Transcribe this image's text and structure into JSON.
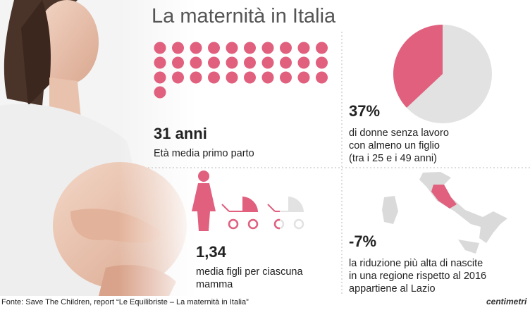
{
  "header": {
    "title": "La maternità in Italia"
  },
  "age": {
    "value": 31,
    "label": "31 anni",
    "caption": "Età media primo parto"
  },
  "unemployed": {
    "value": 37,
    "label": "37%",
    "caption": [
      "di donne senza lavoro",
      "con almeno un figlio",
      "(tra i 25 e i 49 anni)"
    ]
  },
  "children": {
    "value": 1.34,
    "label": "1,34",
    "caption": [
      "media figli per ciascuna",
      "mamma"
    ]
  },
  "births": {
    "label": "-7%",
    "caption": [
      "la riduzione più alta di nascite",
      "in una regione rispetto al 2016",
      "appartiene al Lazio"
    ]
  },
  "footer": {
    "source": "Fonte: Save The Children, report “Le Equilibriste – La maternità in Italia”",
    "logo": "centimetri"
  },
  "colors": {
    "accent": "#e0607e",
    "neutral": "#e2e2e2"
  }
}
